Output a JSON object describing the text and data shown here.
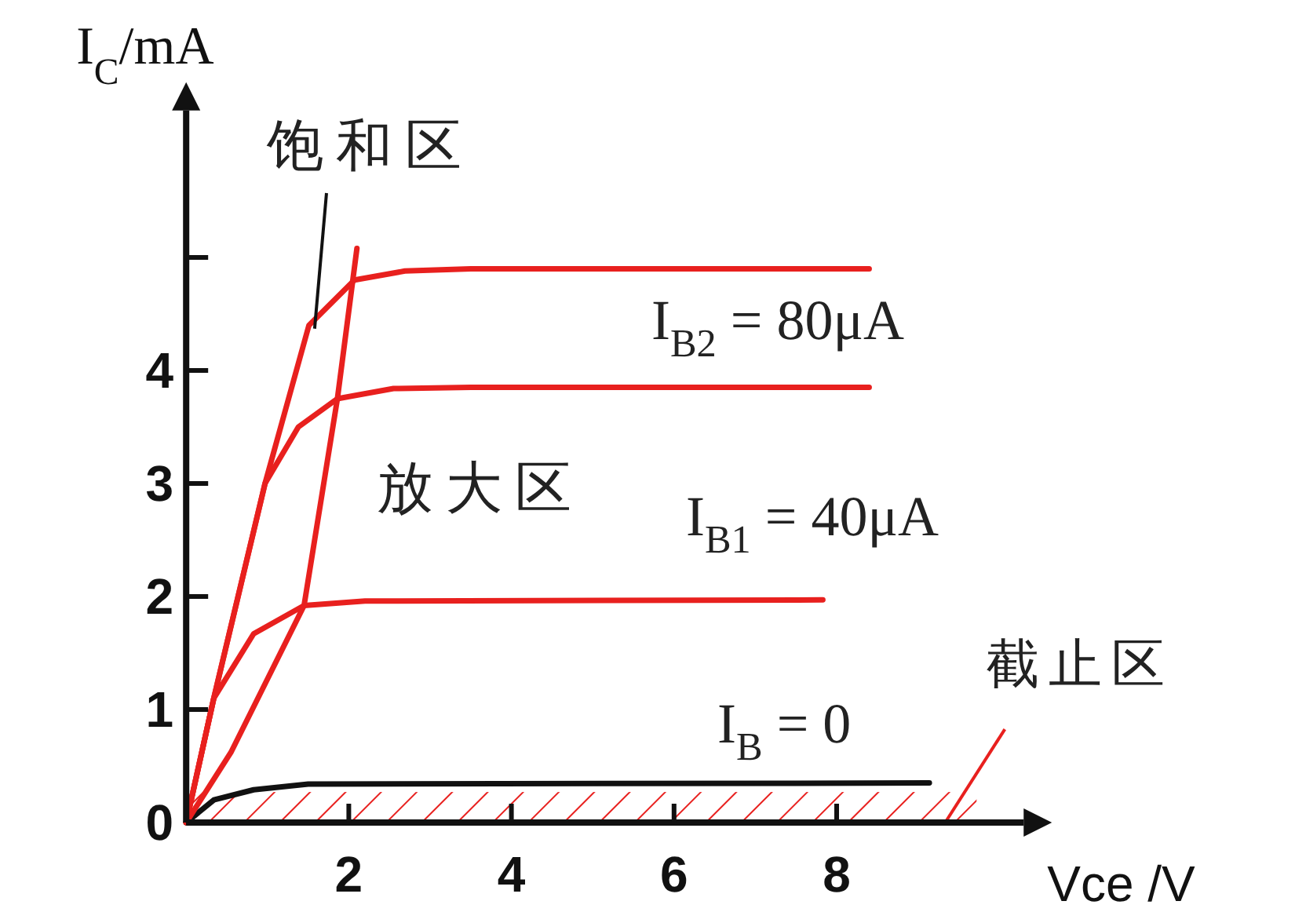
{
  "chart_data": {
    "type": "line",
    "xlabel": "Vce /V",
    "ylabel": "I$_{C}$/mA",
    "xlim": [
      0,
      10.3
    ],
    "ylim": [
      0,
      6.3
    ],
    "xticks": [
      2,
      4,
      6,
      8
    ],
    "yticks": [
      0,
      1,
      2,
      3,
      4,
      {
        "value": 5,
        "label": null
      }
    ],
    "grid": false,
    "marker": "none",
    "line_style": "solid",
    "series": [
      {
        "color": "#e8201e",
        "x": [
          0,
          0.34,
          0.97,
          1.51,
          2.07,
          2.69,
          3.5,
          8.4
        ],
        "values": [
          0,
          1.1,
          3.0,
          4.4,
          4.8,
          4.88,
          4.9,
          4.9
        ]
      },
      {
        "color": "#e8201e",
        "x": [
          0,
          0.34,
          0.97,
          1.38,
          1.86,
          2.55,
          3.5,
          8.4
        ],
        "values": [
          0,
          1.1,
          3.0,
          3.5,
          3.75,
          3.84,
          3.85,
          3.85
        ]
      },
      {
        "color": "#e8201e",
        "x": [
          0,
          0.34,
          0.83,
          1.45,
          2.2,
          7.83
        ],
        "values": [
          0,
          1.1,
          1.67,
          1.92,
          1.96,
          1.97
        ]
      },
      {
        "color": "#111111",
        "x": [
          0,
          0.34,
          0.83,
          1.5,
          9.14
        ],
        "values": [
          0,
          0.2,
          0.29,
          0.34,
          0.35
        ]
      },
      {
        "color": "#e8201e",
        "x": [
          0,
          0.55,
          1.45,
          1.86,
          2.1
        ],
        "values": [
          0,
          0.62,
          1.92,
          3.75,
          5.08
        ]
      }
    ],
    "bands": [
      {
        "axis": "y",
        "from": 0,
        "to": 0.27,
        "label": "截止区",
        "color": "#e8201e"
      }
    ],
    "annotations": [
      {
        "text": "饱和区",
        "x": 1.58,
        "y": 4.37
      },
      "放大区",
      "I$_{B2}$ = 80μA",
      "I$_{B1}$ = 40μA",
      "I$_{B}$ = 0"
    ]
  }
}
